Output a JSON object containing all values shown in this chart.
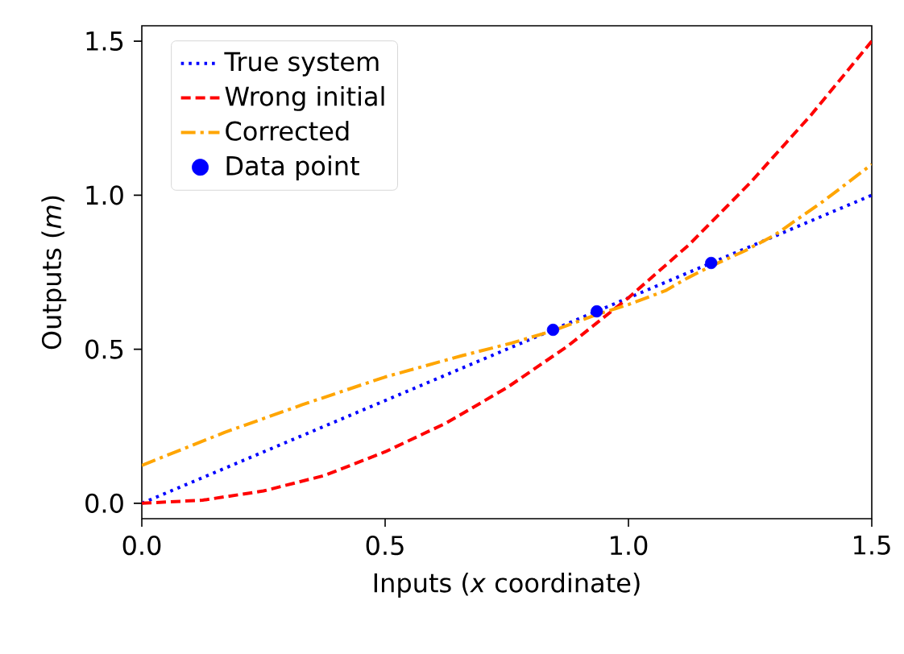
{
  "chart_data": {
    "type": "line",
    "xlabel": "Inputs (*x* coordinate)",
    "ylabel": "Outputs (*m*)",
    "xlim": [
      0,
      1.5
    ],
    "ylim": [
      -0.05,
      1.55
    ],
    "xticks": [
      {
        "value": 0,
        "label": "0.0"
      },
      0.5,
      {
        "value": 1,
        "label": "1.0"
      },
      1.5
    ],
    "yticks": [
      {
        "value": 0,
        "label": "0.0"
      },
      0.5,
      {
        "value": 1,
        "label": "1.0"
      },
      1.5
    ],
    "grid": false,
    "legend": "top left",
    "series": [
      {
        "name": "True system",
        "color": "#0000ff",
        "line_style": "dotted",
        "marker": "none",
        "x": [
          0,
          0.75,
          1.5
        ],
        "values": [
          0,
          0.5,
          1.0
        ]
      },
      {
        "name": "Wrong initial",
        "color": "#ff0000",
        "line_style": "dashed",
        "marker": "none",
        "x": [
          0,
          0.125,
          0.25,
          0.375,
          0.5,
          0.625,
          0.75,
          0.875,
          1.0,
          1.125,
          1.25,
          1.375,
          1.5
        ],
        "values": [
          0,
          0.01,
          0.04,
          0.09,
          0.167,
          0.26,
          0.375,
          0.51,
          0.667,
          0.84,
          1.04,
          1.26,
          1.5
        ]
      },
      {
        "name": "Corrected",
        "color": "#ffa500",
        "line_style": "dashdot",
        "marker": "none",
        "x": [
          0,
          0.17,
          0.33,
          0.5,
          0.66,
          0.76,
          0.845,
          0.93,
          1.0,
          1.076,
          1.12,
          1.17,
          1.24,
          1.3,
          1.4,
          1.5
        ],
        "values": [
          0.123,
          0.23,
          0.32,
          0.41,
          0.48,
          0.52,
          0.56,
          0.61,
          0.645,
          0.69,
          0.73,
          0.77,
          0.82,
          0.87,
          0.98,
          1.1
        ]
      },
      {
        "name": "Data point",
        "type": "scatter",
        "color": "#0000ff",
        "marker": "circle",
        "x": [
          0.845,
          0.935,
          1.17
        ],
        "values": [
          0.563,
          0.623,
          0.78
        ]
      }
    ]
  }
}
